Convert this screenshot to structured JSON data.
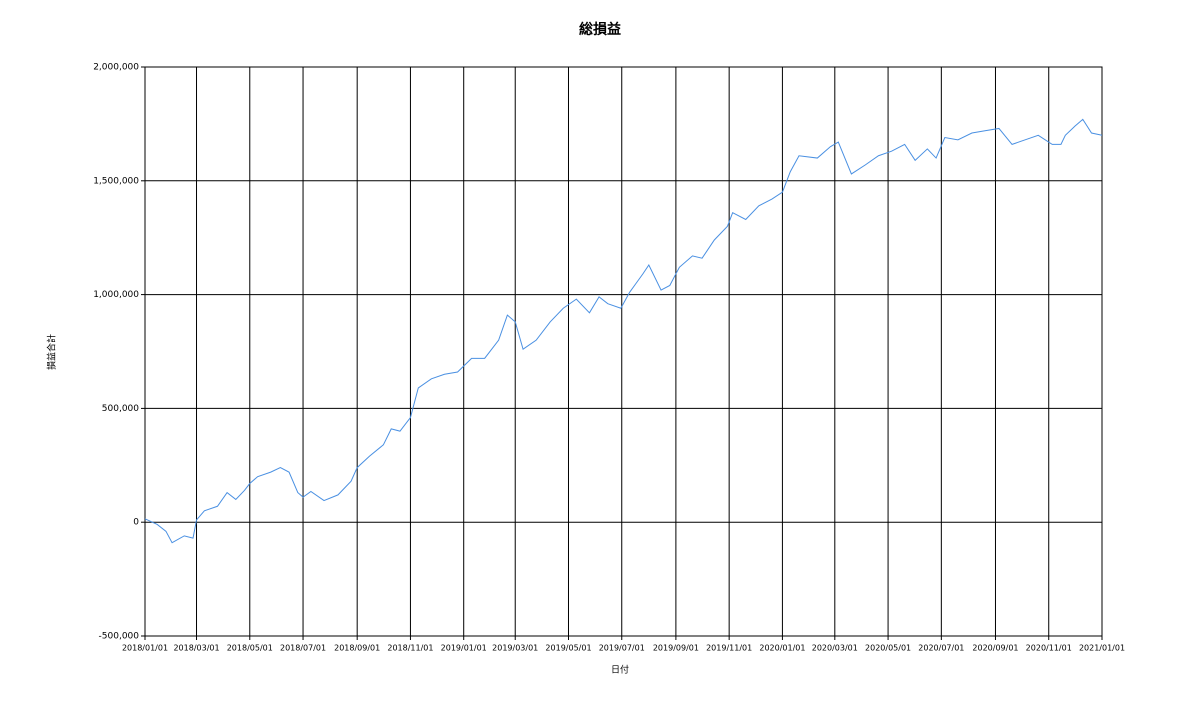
{
  "chart_data": {
    "type": "line",
    "title": "総損益",
    "x_label": "日付",
    "y_label": "損益合計",
    "xlim": [
      "2018/01/01",
      "2021/01/01"
    ],
    "xticks": [
      "2018/01/01",
      "2018/03/01",
      "2018/05/01",
      "2018/07/01",
      "2018/09/01",
      "2018/11/01",
      "2019/01/01",
      "2019/03/01",
      "2019/05/01",
      "2019/07/01",
      "2019/09/01",
      "2019/11/01",
      "2020/01/01",
      "2020/03/01",
      "2020/05/01",
      "2020/07/01",
      "2020/09/01",
      "2020/11/01",
      "2021/01/01"
    ],
    "ylim": [
      -500000,
      2000000
    ],
    "yticks": [
      {
        "value": -500000,
        "label": "-500,000"
      },
      0,
      {
        "value": 500000,
        "label": "500,000"
      },
      {
        "value": 1000000,
        "label": "1,000,000"
      },
      {
        "value": 1500000,
        "label": "1,500,000"
      },
      {
        "value": 2000000,
        "label": "2,000,000"
      }
    ],
    "grid": true,
    "x": [
      "2018/01/01",
      "2018/01/15",
      "2018/01/25",
      "2018/02/01",
      "2018/02/15",
      "2018/02/25",
      "2018/03/01",
      "2018/03/10",
      "2018/03/25",
      "2018/04/05",
      "2018/04/15",
      "2018/04/25",
      "2018/05/01",
      "2018/05/10",
      "2018/05/25",
      "2018/06/05",
      "2018/06/15",
      "2018/06/25",
      "2018/07/01",
      "2018/07/10",
      "2018/07/25",
      "2018/08/10",
      "2018/08/25",
      "2018/09/01",
      "2018/09/15",
      "2018/10/01",
      "2018/10/10",
      "2018/10/20",
      "2018/11/01",
      "2018/11/10",
      "2018/11/25",
      "2018/12/10",
      "2018/12/25",
      "2019/01/10",
      "2019/01/25",
      "2019/02/10",
      "2019/02/20",
      "2019/03/01",
      "2019/03/10",
      "2019/03/25",
      "2019/04/10",
      "2019/04/25",
      "2019/05/10",
      "2019/05/25",
      "2019/06/05",
      "2019/06/15",
      "2019/06/30",
      "2019/07/10",
      "2019/07/25",
      "2019/08/01",
      "2019/08/15",
      "2019/08/25",
      "2019/09/05",
      "2019/09/20",
      "2019/10/01",
      "2019/10/15",
      "2019/10/30",
      "2019/11/05",
      "2019/11/20",
      "2019/12/05",
      "2019/12/20",
      "2020/01/01",
      "2020/01/10",
      "2020/01/20",
      "2020/02/10",
      "2020/02/25",
      "2020/03/05",
      "2020/03/20",
      "2020/04/05",
      "2020/04/20",
      "2020/05/05",
      "2020/05/20",
      "2020/06/01",
      "2020/06/15",
      "2020/06/25",
      "2020/07/05",
      "2020/07/20",
      "2020/08/05",
      "2020/08/20",
      "2020/09/05",
      "2020/09/20",
      "2020/10/05",
      "2020/10/20",
      "2020/11/05",
      "2020/11/15",
      "2020/11/20",
      "2020/12/01",
      "2020/12/10",
      "2020/12/20",
      "2021/01/01"
    ],
    "series": [
      {
        "name": "損益合計",
        "color": "#4a90e2",
        "values": [
          15000,
          -10000,
          -40000,
          -90000,
          -60000,
          -70000,
          10000,
          50000,
          70000,
          130000,
          100000,
          140000,
          170000,
          200000,
          220000,
          240000,
          220000,
          130000,
          110000,
          135000,
          95000,
          120000,
          180000,
          240000,
          290000,
          340000,
          410000,
          400000,
          460000,
          590000,
          630000,
          650000,
          660000,
          720000,
          720000,
          800000,
          910000,
          880000,
          760000,
          800000,
          880000,
          940000,
          980000,
          920000,
          990000,
          960000,
          940000,
          1010000,
          1090000,
          1130000,
          1020000,
          1040000,
          1120000,
          1170000,
          1160000,
          1240000,
          1300000,
          1360000,
          1330000,
          1390000,
          1420000,
          1450000,
          1540000,
          1610000,
          1600000,
          1650000,
          1670000,
          1530000,
          1570000,
          1610000,
          1630000,
          1660000,
          1590000,
          1640000,
          1600000,
          1690000,
          1680000,
          1710000,
          1720000,
          1730000,
          1660000,
          1680000,
          1700000,
          1660000,
          1660000,
          1700000,
          1740000,
          1770000,
          1710000,
          1700000
        ]
      }
    ]
  }
}
